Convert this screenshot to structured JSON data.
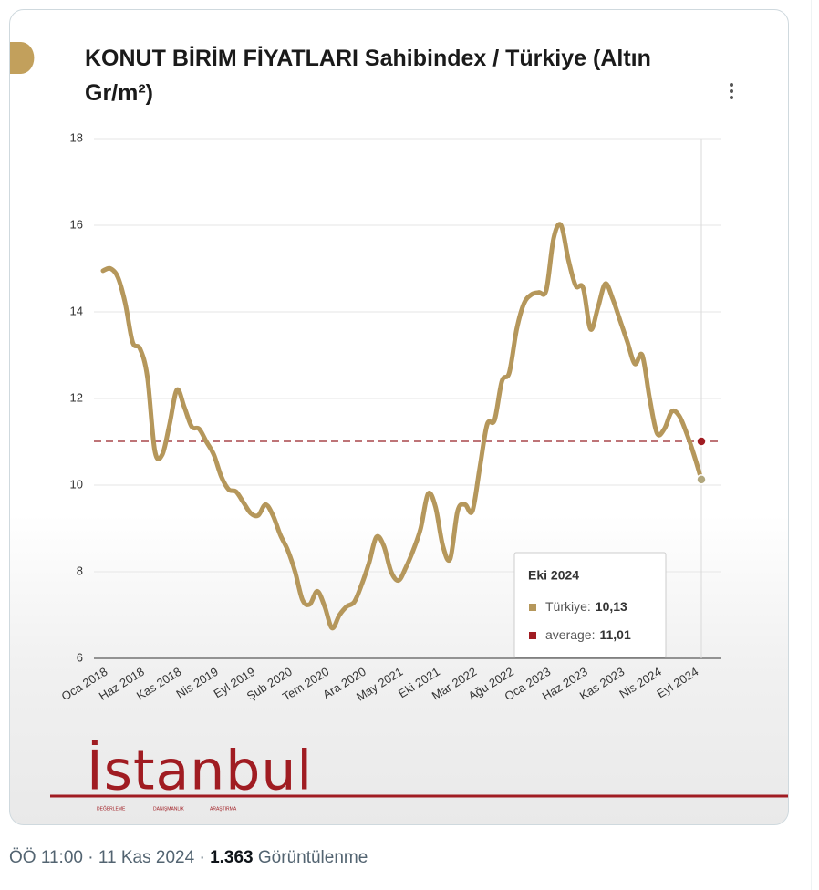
{
  "chart_data": {
    "type": "line",
    "title": "KONUT BİRİM FİYATLARI Sahibindex / Türkiye (Altın Gr/m²)",
    "categories": [
      "Oca 2018",
      null,
      null,
      null,
      null,
      "Haz 2018",
      null,
      null,
      null,
      null,
      "Kas 2018",
      null,
      null,
      null,
      null,
      "Nis 2019",
      null,
      null,
      null,
      null,
      "Eyl 2019",
      null,
      null,
      null,
      null,
      "Şub 2020",
      null,
      null,
      null,
      null,
      "Tem 2020",
      null,
      null,
      null,
      null,
      "Ara 2020",
      null,
      null,
      null,
      null,
      "May 2021",
      null,
      null,
      null,
      null,
      "Eki 2021",
      null,
      null,
      null,
      null,
      "Mar 2022",
      null,
      null,
      null,
      null,
      "Ağu 2022",
      null,
      null,
      null,
      null,
      "Oca 2023",
      null,
      null,
      null,
      null,
      "Haz 2023",
      null,
      null,
      null,
      null,
      "Kas 2023",
      null,
      null,
      null,
      null,
      "Nis 2024",
      null,
      null,
      null,
      null,
      "Eyl 2024",
      null
    ],
    "series": [
      {
        "name": "Türkiye",
        "color": "#b5975b",
        "values": [
          14.95,
          15.0,
          14.8,
          14.2,
          13.3,
          13.15,
          12.5,
          10.8,
          10.7,
          11.4,
          12.2,
          11.8,
          11.35,
          11.3,
          11.0,
          10.7,
          10.2,
          9.9,
          9.85,
          9.6,
          9.35,
          9.3,
          9.55,
          9.3,
          8.85,
          8.5,
          8.0,
          7.35,
          7.25,
          7.55,
          7.2,
          6.7,
          7.0,
          7.2,
          7.3,
          7.7,
          8.2,
          8.8,
          8.6,
          8.0,
          7.8,
          8.1,
          8.5,
          9.0,
          9.8,
          9.5,
          8.6,
          8.3,
          9.4,
          9.55,
          9.4,
          10.4,
          11.4,
          11.5,
          12.4,
          12.6,
          13.6,
          14.2,
          14.4,
          14.45,
          14.5,
          15.7,
          16.0,
          15.2,
          14.6,
          14.55,
          13.6,
          14.1,
          14.65,
          14.3,
          13.8,
          13.3,
          12.8,
          13.0,
          12.0,
          11.2,
          11.3,
          11.7,
          11.6,
          11.2,
          10.7,
          10.13
        ]
      }
    ],
    "reference_lines": [
      {
        "name": "average",
        "value": 11.01,
        "color": "#a8474a"
      }
    ],
    "ylim": [
      6,
      18
    ],
    "yticks": [
      6,
      8,
      10,
      12,
      14,
      16,
      18
    ],
    "grid": true,
    "tooltip": {
      "title": "Eki 2024",
      "separator": ":",
      "value_labels": [
        "10,13",
        "11,01"
      ]
    }
  },
  "logo": {
    "name": "İstanbul",
    "tagline": [
      "DEĞERLEME",
      "DANIŞMANLIK",
      "ARAŞTIRMA"
    ]
  },
  "footer": {
    "time": "ÖÖ 11:00",
    "separator": "·",
    "date": "11 Kas 2024",
    "views": "1.363",
    "views_label": "Görüntülenme"
  }
}
